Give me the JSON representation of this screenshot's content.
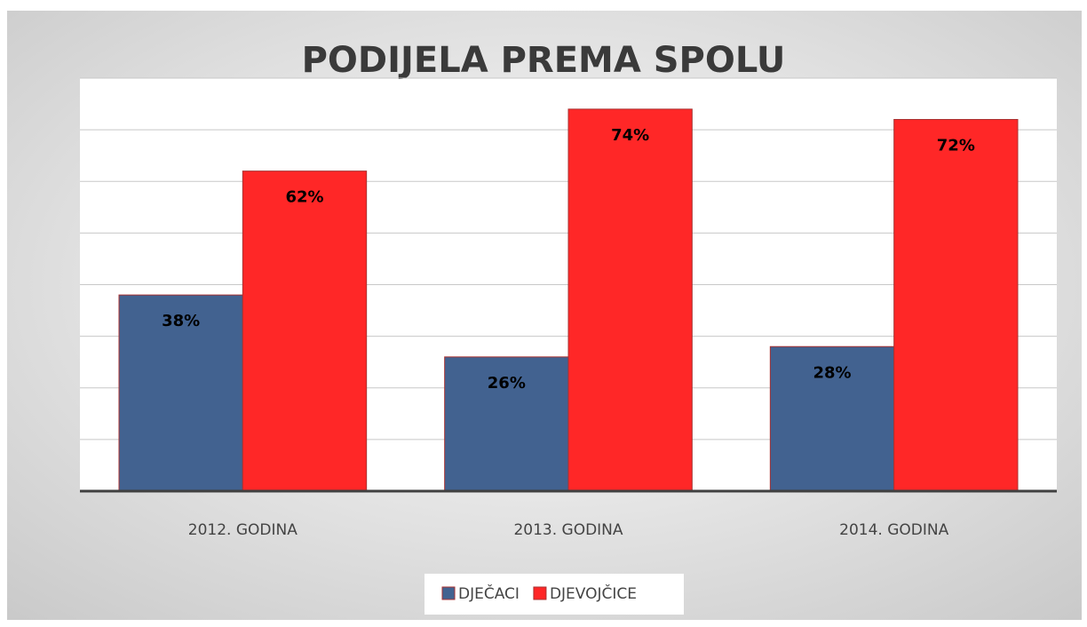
{
  "chart_data": {
    "type": "bar",
    "title": "PODIJELA PREMA SPOLU",
    "categories": [
      "2012. GODINA",
      "2013. GODINA",
      "2014. GODINA"
    ],
    "series": [
      {
        "name": "DJEČACI",
        "color": "#426290",
        "values": [
          38,
          26,
          28
        ],
        "value_labels": [
          "38%",
          "26%",
          "28%"
        ]
      },
      {
        "name": "DJEVOJČICE",
        "color": "#ff2727",
        "values": [
          62,
          74,
          72
        ],
        "value_labels": [
          "62%",
          "74%",
          "72%"
        ]
      }
    ],
    "ylim": [
      0,
      80
    ],
    "yticks": [
      0,
      10,
      20,
      30,
      40,
      50,
      60,
      70,
      80
    ],
    "grid": true,
    "legend": "bottom"
  }
}
